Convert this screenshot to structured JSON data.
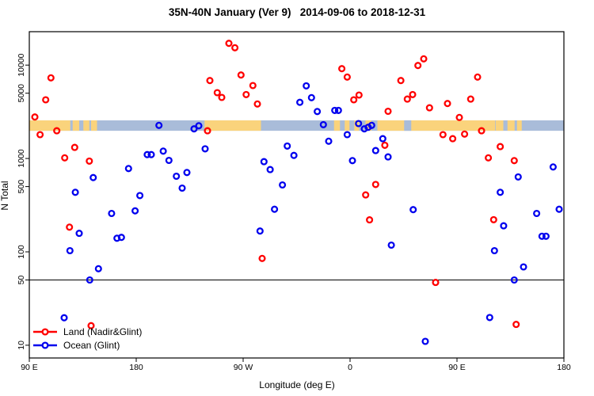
{
  "title": "35N-40N January (Ver 9)   2014-09-06 to 2018-12-31",
  "chart_data": {
    "type": "scatter",
    "title": "35N-40N January (Ver 9)   2014-09-06 to 2018-12-31",
    "xlabel": "Longitude (deg E)",
    "ylabel": "N Total",
    "x_axis": {
      "note": "x measured in degrees eastward from left edge (left edge = 90 E, axis wraps 450 degrees)",
      "span_deg": [
        0,
        450
      ],
      "ticks_deg": [
        0,
        90,
        180,
        270,
        360,
        450
      ],
      "tick_labels": [
        "90 E",
        "180",
        "90 W",
        "0",
        "90 E",
        "180"
      ]
    },
    "y_axis": {
      "scale": "log",
      "range": [
        7.3,
        22800
      ],
      "ticks": [
        10,
        50,
        100,
        500,
        1000,
        5000,
        10000
      ],
      "tick_labels": [
        "10",
        "50",
        "100",
        "500",
        "1000",
        "5000",
        "10000"
      ]
    },
    "reference_line_y": 50,
    "grid": "off",
    "legend_position": "bottom-left",
    "land_ocean_band": {
      "value_range": [
        1980,
        2560
      ],
      "land_color": "#FAD37C",
      "ocean_color": "#A9BCD9",
      "land_segments_deg": [
        [
          0,
          34.5
        ],
        [
          36.5,
          42
        ],
        [
          45.5,
          50.5
        ],
        [
          52,
          57
        ],
        [
          147.5,
          195
        ],
        [
          256.5,
          261.5
        ],
        [
          265.5,
          269.5
        ],
        [
          273.5,
          277.5
        ],
        [
          283,
          288
        ],
        [
          293,
          392
        ],
        [
          392.5,
          399
        ],
        [
          402.5,
          408.5
        ],
        [
          410.5,
          414.5
        ]
      ],
      "ocean_patches_deg": [
        [
          315.5,
          321.5
        ]
      ]
    },
    "series": [
      {
        "name": "Land (Nadir&Glint)",
        "color": "#FF0000",
        "points": [
          [
            18.2,
            7300
          ],
          [
            13.8,
            4250
          ],
          [
            4.7,
            2780
          ],
          [
            9.1,
            1800
          ],
          [
            23.1,
            1980
          ],
          [
            38.2,
            1315
          ],
          [
            29.8,
            1015
          ],
          [
            50.5,
            937
          ],
          [
            33.8,
            184
          ],
          [
            52,
            16.2
          ],
          [
            150,
            1980
          ],
          [
            168,
            17100
          ],
          [
            173.1,
            15350
          ],
          [
            152,
            6830
          ],
          [
            178.2,
            7830
          ],
          [
            188.2,
            6040
          ],
          [
            158.2,
            5070
          ],
          [
            162,
            4510
          ],
          [
            182.5,
            4840
          ],
          [
            192,
            3830
          ],
          [
            196,
            85
          ],
          [
            263.1,
            9160
          ],
          [
            267.6,
            7440
          ],
          [
            277.5,
            4775
          ],
          [
            273.1,
            4250
          ],
          [
            302,
            3200
          ],
          [
            299.3,
            1385
          ],
          [
            291.5,
            527
          ],
          [
            283.1,
            407
          ],
          [
            286.4,
            220
          ],
          [
            332,
            11670
          ],
          [
            327.1,
            9900
          ],
          [
            312.7,
            6830
          ],
          [
            377.3,
            7440
          ],
          [
            322.7,
            4840
          ],
          [
            318.2,
            4330
          ],
          [
            371.5,
            4330
          ],
          [
            336.9,
            3490
          ],
          [
            352,
            3875
          ],
          [
            362,
            2750
          ],
          [
            348.2,
            1800
          ],
          [
            356.4,
            1630
          ],
          [
            366.4,
            1825
          ],
          [
            342,
            47
          ],
          [
            380.7,
            1980
          ],
          [
            396.4,
            1340
          ],
          [
            386.4,
            1015
          ],
          [
            408.2,
            948
          ],
          [
            390.9,
            221
          ],
          [
            409.8,
            16.7
          ]
        ]
      },
      {
        "name": "Ocean (Glint)",
        "color": "#0000EE",
        "points": [
          [
            53.8,
            625
          ],
          [
            38.7,
            434
          ],
          [
            69.3,
            258
          ],
          [
            42,
            158
          ],
          [
            73.8,
            140
          ],
          [
            34.2,
            103
          ],
          [
            58.2,
            66
          ],
          [
            50.9,
            50
          ],
          [
            29.3,
            19.7
          ],
          [
            109.1,
            2260
          ],
          [
            138.7,
            2075
          ],
          [
            142.7,
            2240
          ],
          [
            148,
            1270
          ],
          [
            99.3,
            1100
          ],
          [
            102.7,
            1100
          ],
          [
            112.7,
            1200
          ],
          [
            117.5,
            955
          ],
          [
            83.5,
            780
          ],
          [
            123.8,
            646
          ],
          [
            132.7,
            707
          ],
          [
            128.7,
            482
          ],
          [
            93.1,
            401
          ],
          [
            89.1,
            275
          ],
          [
            77.5,
            143
          ],
          [
            217.1,
            1360
          ],
          [
            222.7,
            1080
          ],
          [
            197.5,
            925
          ],
          [
            202.7,
            760
          ],
          [
            213.1,
            521
          ],
          [
            206.4,
            286
          ],
          [
            194.2,
            167
          ],
          [
            233.1,
            6000
          ],
          [
            237.5,
            4480
          ],
          [
            227.7,
            3990
          ],
          [
            242.4,
            3185
          ],
          [
            257.1,
            3270
          ],
          [
            260.2,
            3270
          ],
          [
            247.5,
            2300
          ],
          [
            277.1,
            2365
          ],
          [
            282,
            2075
          ],
          [
            285.3,
            2160
          ],
          [
            288.2,
            2260
          ],
          [
            267.6,
            1800
          ],
          [
            252,
            1530
          ],
          [
            297.5,
            1630
          ],
          [
            291.5,
            1215
          ],
          [
            302,
            1040
          ],
          [
            272,
            948
          ],
          [
            304.7,
            118
          ],
          [
            323.1,
            283
          ],
          [
            333.3,
            11
          ],
          [
            440.9,
            811
          ],
          [
            411.5,
            634
          ],
          [
            396.4,
            434
          ],
          [
            427.1,
            258
          ],
          [
            446,
            286
          ],
          [
            399.3,
            190
          ],
          [
            431.5,
            147
          ],
          [
            434.9,
            147
          ],
          [
            391.5,
            103
          ],
          [
            416,
            69
          ],
          [
            408.2,
            50
          ],
          [
            387.5,
            19.8
          ]
        ]
      }
    ]
  }
}
